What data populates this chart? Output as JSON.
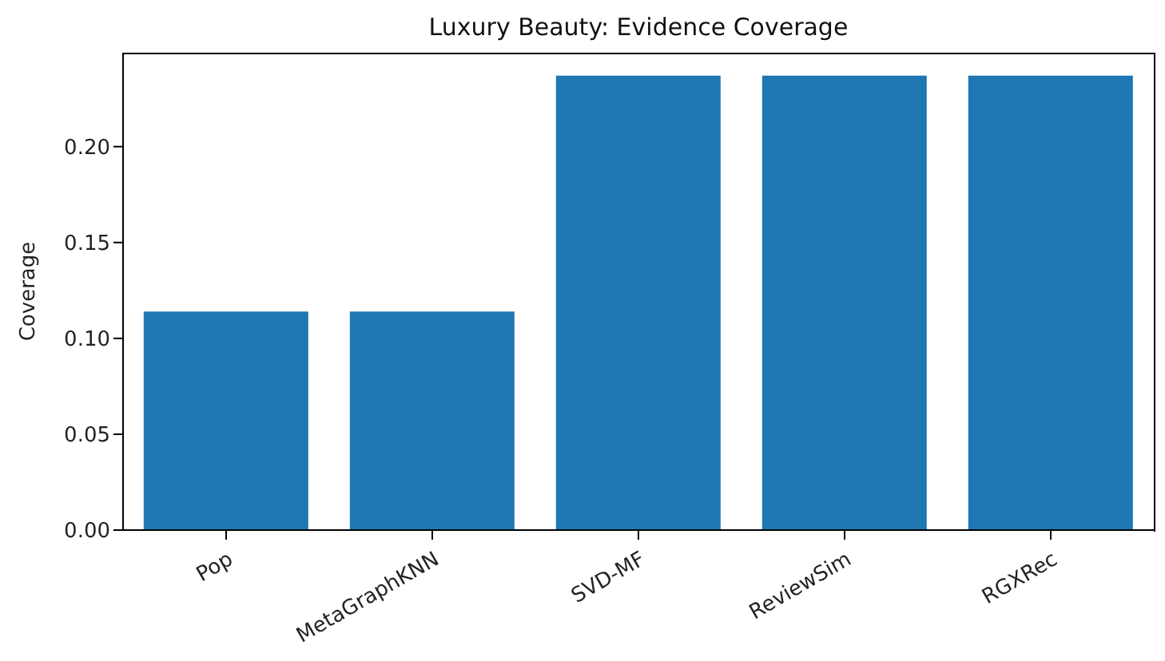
{
  "chart_data": {
    "type": "bar",
    "title": "Luxury Beauty: Evidence Coverage",
    "ylabel": "Coverage",
    "categories": [
      "Pop",
      "MetaGraphKNN",
      "SVD-MF",
      "ReviewSim",
      "RGXRec"
    ],
    "values": [
      0.114,
      0.114,
      0.237,
      0.237,
      0.237
    ],
    "color": "#1f77b4",
    "ylim": [
      0,
      0.249
    ],
    "yticks": [
      {
        "value": 0,
        "label": "0.00"
      },
      0.05,
      {
        "value": 0.1,
        "label": "0.10"
      },
      0.15,
      {
        "value": 0.2,
        "label": "0.20"
      }
    ],
    "grid": false,
    "legend": false
  }
}
